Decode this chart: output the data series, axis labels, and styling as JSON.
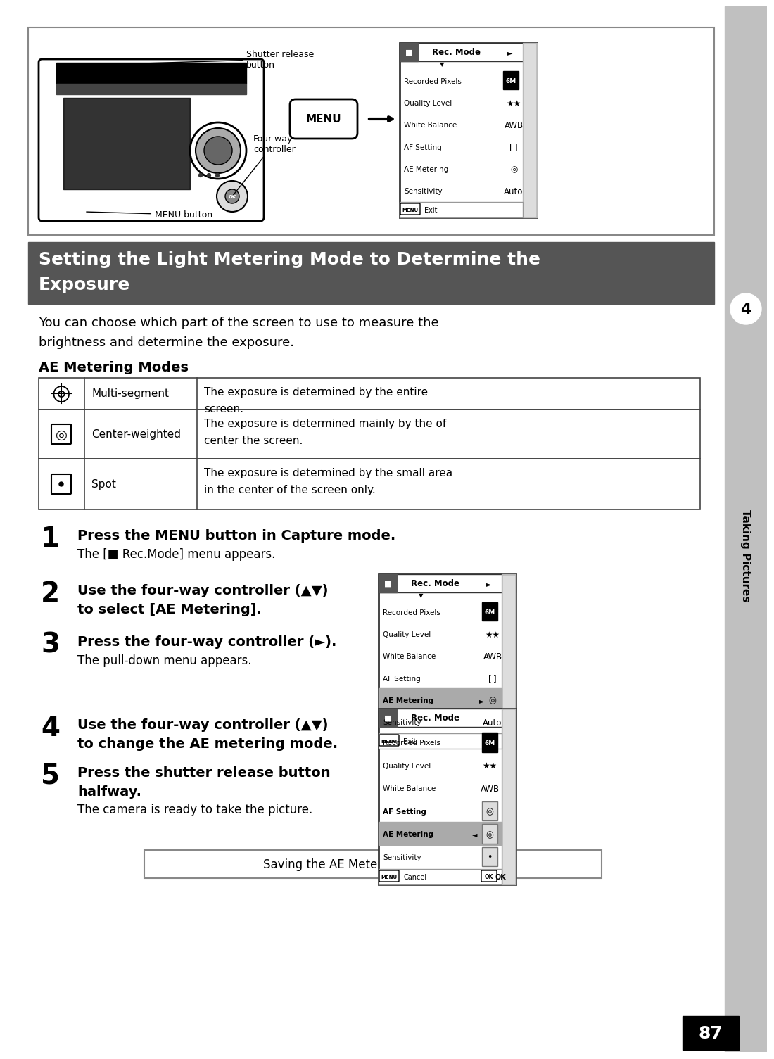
{
  "page_bg": "#ffffff",
  "sidebar_bg": "#c8c8c8",
  "header_bg": "#555555",
  "header_text": "Setting the Light Metering Mode to Determine the Exposure",
  "header_text_color": "#ffffff",
  "body_text1": "You can choose which part of the screen to use to measure the",
  "body_text2": "brightness and determine the exposure.",
  "ae_heading": "AE Metering Modes",
  "table_rows": [
    {
      "icon": "multi",
      "name": "Multi-segment",
      "desc": "The exposure is determined by the entire screen."
    },
    {
      "icon": "center",
      "name": "Center-weighted",
      "desc": "The exposure is determined mainly by the center of the screen."
    },
    {
      "icon": "spot",
      "name": "Spot",
      "desc": "The exposure is determined by the small area in the center of the screen only."
    }
  ],
  "footnote": "Saving the AE Metering Mode ☞p.100",
  "page_num": "87",
  "sidebar_label": "Taking Pictures",
  "tab_num": "4"
}
